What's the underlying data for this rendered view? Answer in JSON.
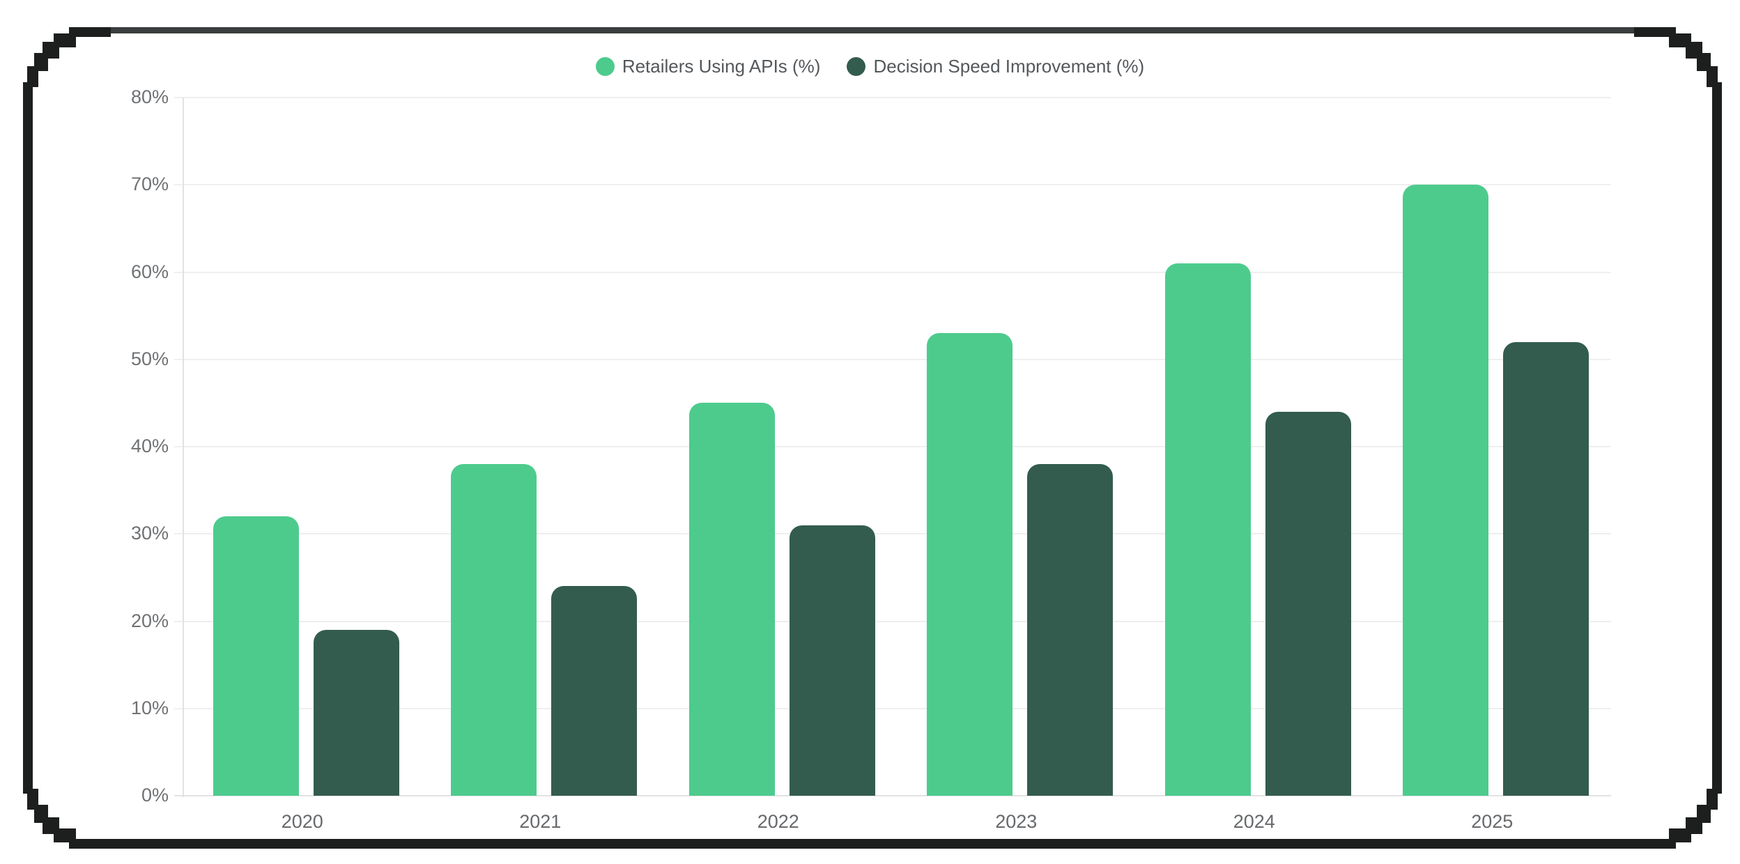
{
  "chart_data": {
    "type": "bar",
    "title": "",
    "categories": [
      "2020",
      "2021",
      "2022",
      "2023",
      "2024",
      "2025"
    ],
    "series": [
      {
        "name": "Retailers Using APIs (%)",
        "color": "#4dcb8d",
        "values": [
          32,
          38,
          45,
          53,
          61,
          70
        ]
      },
      {
        "name": "Decision Speed Improvement (%)",
        "color": "#335c4e",
        "values": [
          19,
          24,
          31,
          38,
          44,
          52
        ]
      }
    ],
    "ylim": [
      0,
      80
    ],
    "ytick_step": 10,
    "yticks": [
      "0%",
      "10%",
      "20%",
      "30%",
      "40%",
      "50%",
      "60%",
      "70%",
      "80%"
    ],
    "grid": true,
    "legend_position": "top-center"
  },
  "axis": {
    "gridline_color": "#efefef",
    "axis_line_color": "#e2e2e2",
    "tick_label_color": "#6f7275",
    "category_label_color": "#66696c"
  },
  "frame": {
    "border_color": "#1d1f1f",
    "top_border_color": "#393d3e",
    "background": "#ffffff"
  }
}
